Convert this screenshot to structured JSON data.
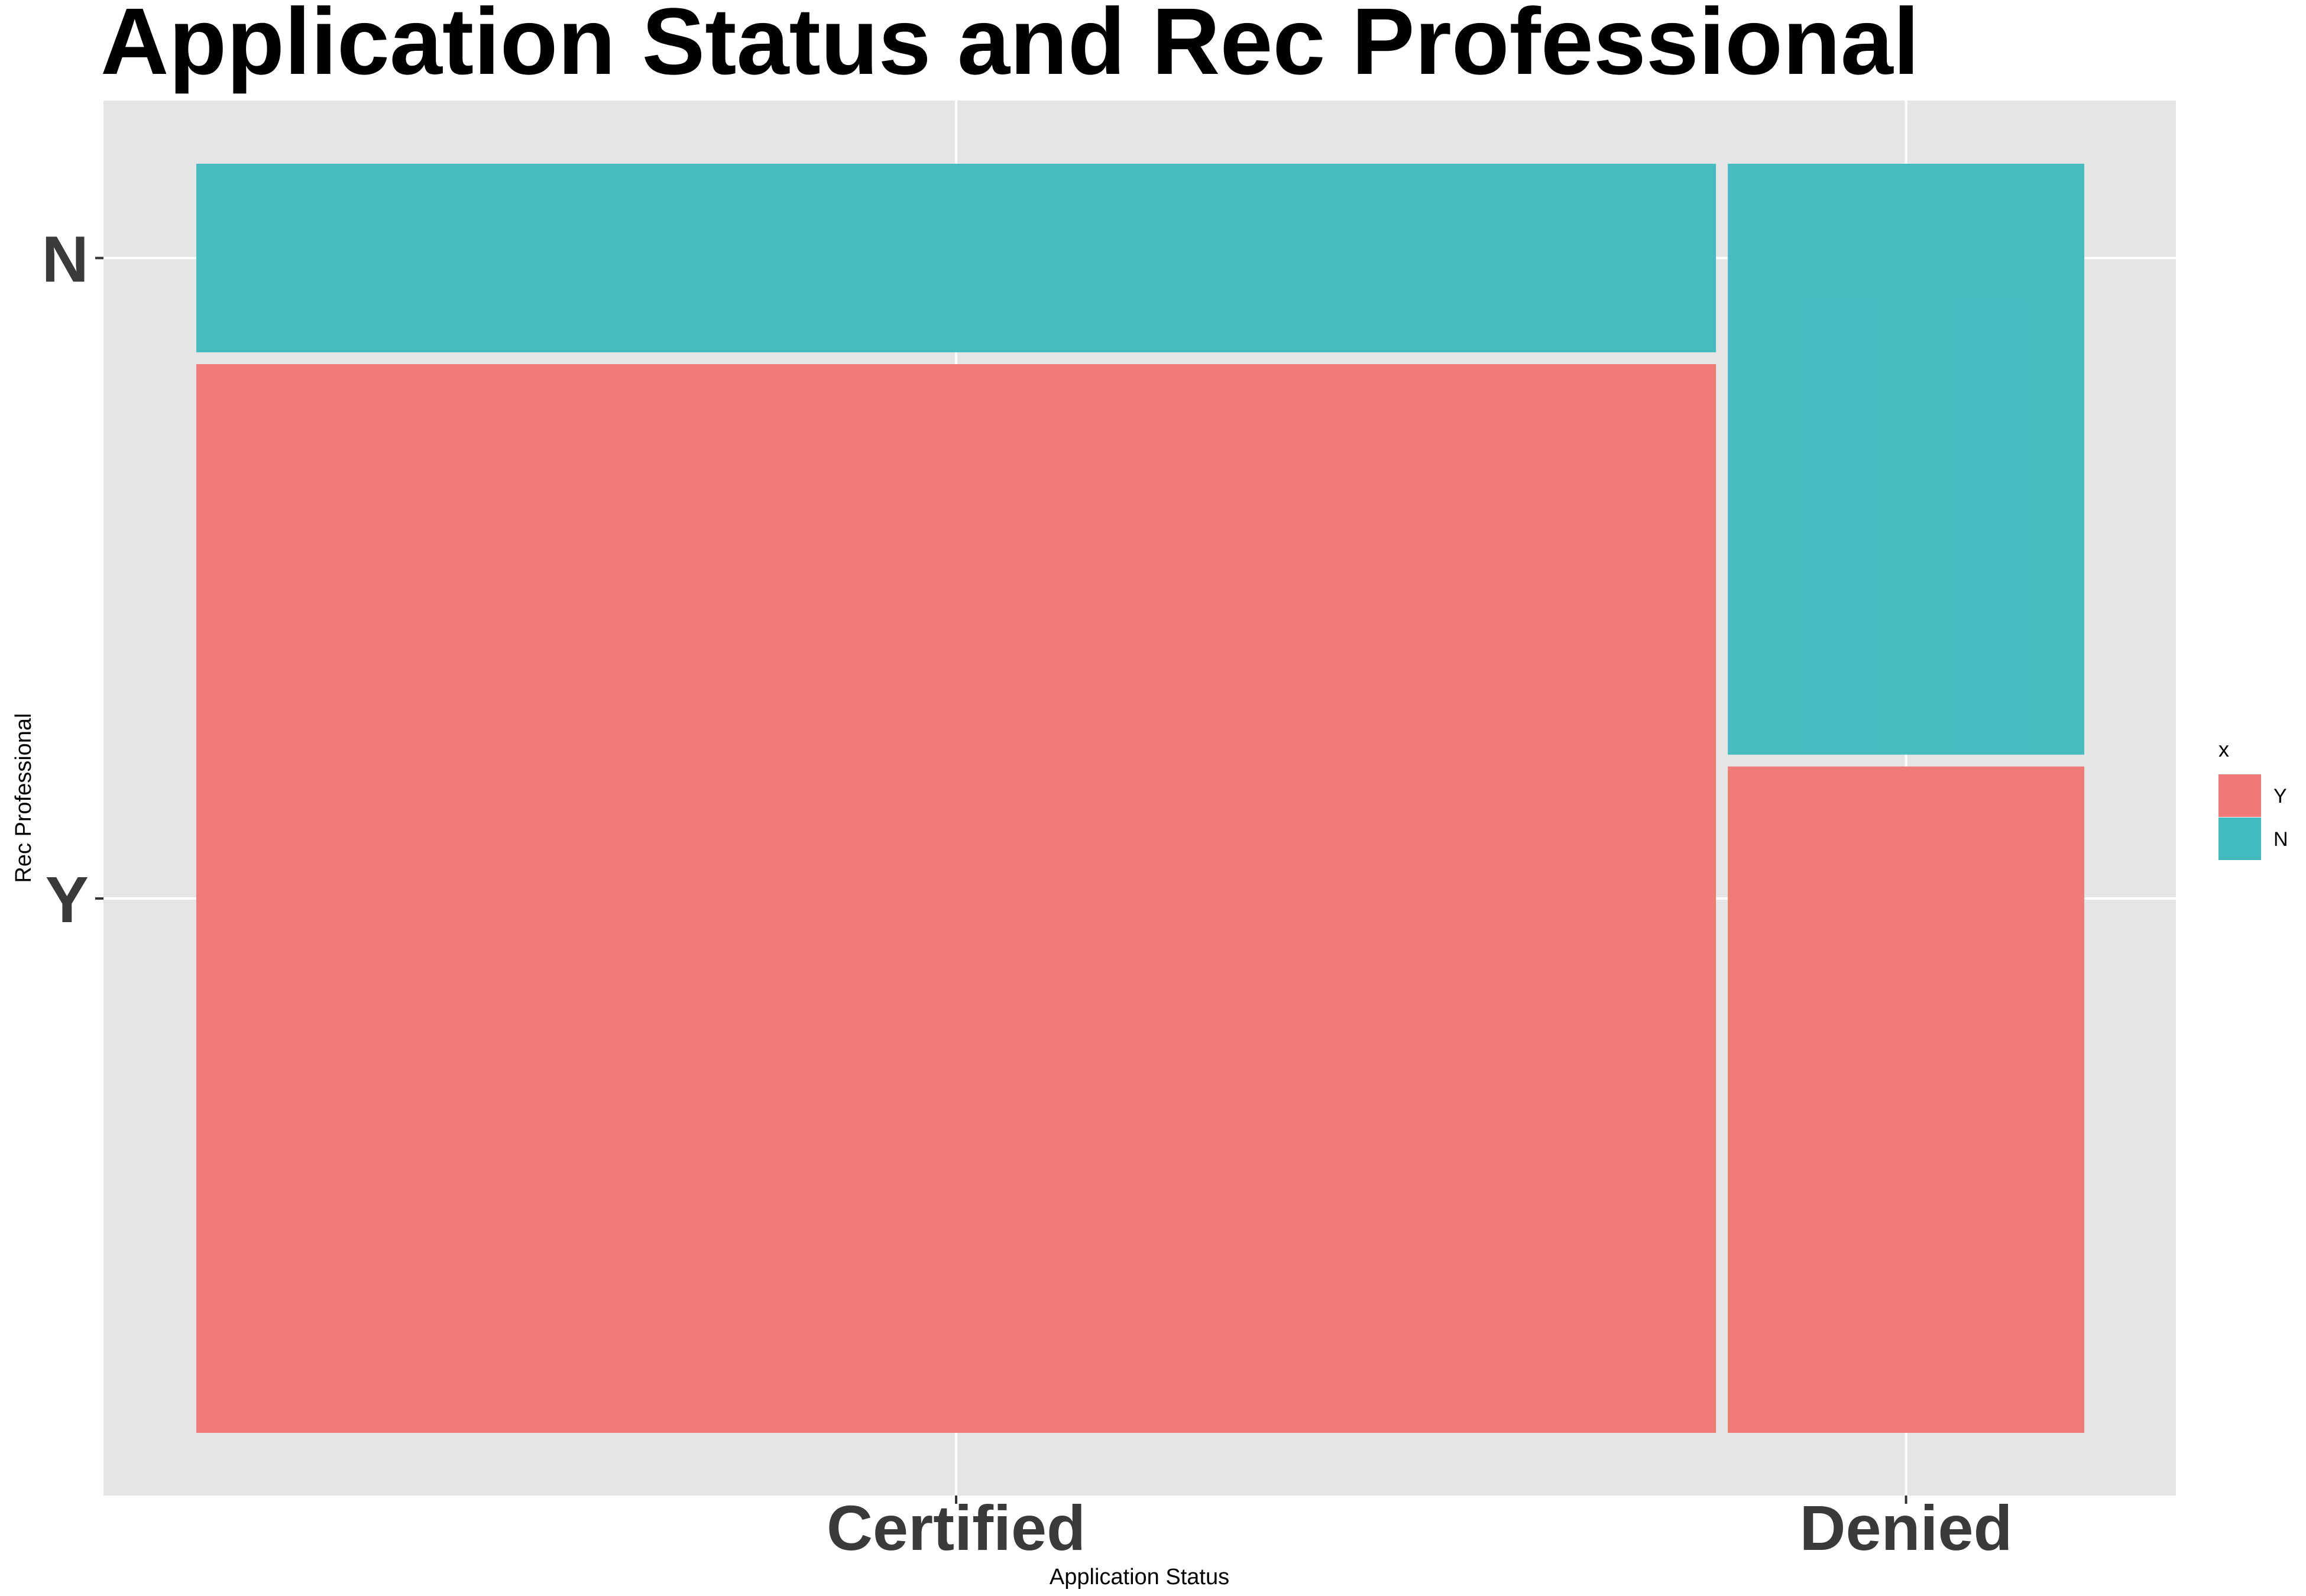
{
  "chart_data": {
    "type": "mosaic",
    "title": "Application Status and Rec Professional",
    "xlabel": "Application Status",
    "ylabel": "Rec Professional",
    "x_categories": [
      "Certified",
      "Denied"
    ],
    "x_proportions": [
      0.81,
      0.19
    ],
    "y_categories": [
      "Y",
      "N"
    ],
    "y_tick_labels": [
      "N",
      "Y"
    ],
    "cells": [
      {
        "x": "Certified",
        "y": "Y",
        "proportion": 0.85
      },
      {
        "x": "Certified",
        "y": "N",
        "proportion": 0.15
      },
      {
        "x": "Denied",
        "y": "Y",
        "proportion": 0.53
      },
      {
        "x": "Denied",
        "y": "N",
        "proportion": 0.47
      }
    ],
    "legend": {
      "title": "x",
      "entries": [
        {
          "label": "Y",
          "color": "#F07874"
        },
        {
          "label": "N",
          "color": "#42BBC0"
        }
      ],
      "placement": "right"
    },
    "colors": {
      "Y": "#F07874",
      "N": "#42BBC0",
      "panel": "#E5E5E5",
      "grid": "#FFFFFF"
    },
    "grid": true
  }
}
